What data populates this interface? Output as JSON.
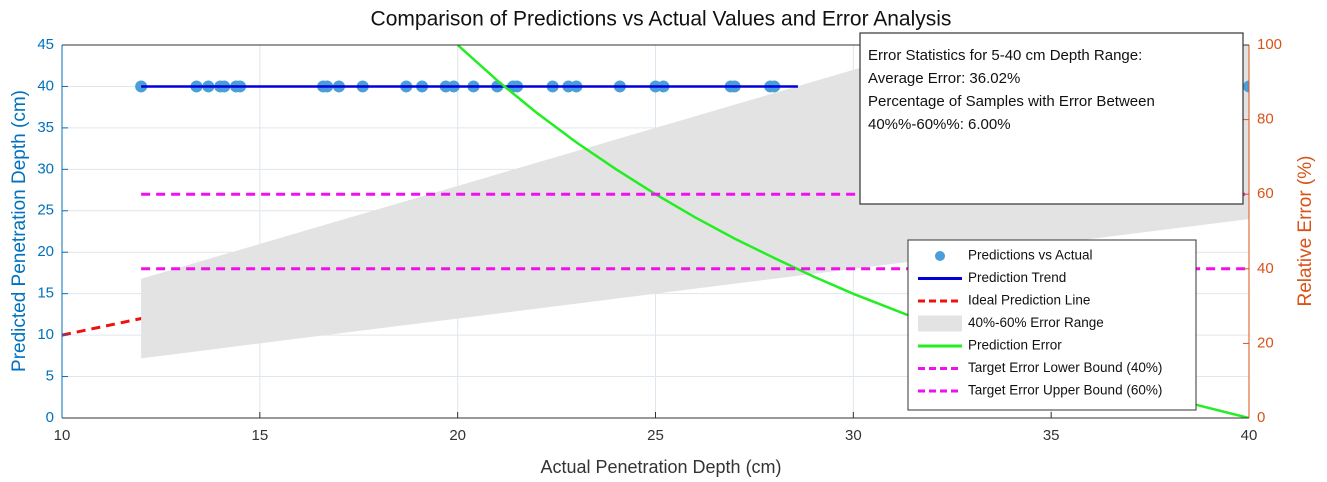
{
  "chart_data": {
    "type": "dual-axis",
    "title": "Comparison of Predictions vs Actual Values and Error Analysis",
    "x_label": "Actual Penetration Depth (cm)",
    "y_label": "Predicted Penetration Depth (cm)",
    "y2_label": "Relative Error (%)",
    "xlim": [
      10,
      40
    ],
    "xticks": [
      10,
      15,
      20,
      25,
      30,
      35,
      40
    ],
    "ylim": [
      0,
      45
    ],
    "yticks": [
      0,
      5,
      10,
      15,
      20,
      25,
      30,
      35,
      40,
      45
    ],
    "y2lim": [
      0,
      100
    ],
    "y2ticks": [
      0,
      20,
      40,
      60,
      80,
      100
    ],
    "y_color": "#0072bd",
    "y2_color": "#d95319",
    "grid": true,
    "legend": "lower right",
    "series": [
      {
        "name": "Predictions vs Actual",
        "type": "scatter",
        "color": "#4a9fd8",
        "x": [
          12,
          13.4,
          13.7,
          14.0,
          14.1,
          14.4,
          14.5,
          16.6,
          16.7,
          17.0,
          17.6,
          18.7,
          19.1,
          19.7,
          19.9,
          20.4,
          21.0,
          21.4,
          21.5,
          22.4,
          22.8,
          23.0,
          24.1,
          25.0,
          25.2,
          26.9,
          27.0,
          27.9,
          28.0,
          40.0
        ],
        "values": [
          40,
          40,
          40,
          40,
          40,
          40,
          40,
          40,
          40,
          40,
          40,
          40,
          40,
          40,
          40,
          40,
          40,
          40,
          40,
          40,
          40,
          40,
          40,
          40,
          40,
          40,
          40,
          40,
          40,
          40
        ]
      },
      {
        "name": "Prediction Trend",
        "type": "line",
        "color": "#0000dd",
        "x": [
          12,
          28.6
        ],
        "values": [
          40,
          40
        ]
      },
      {
        "name": "Ideal Prediction Line",
        "type": "line",
        "dash": true,
        "color": "#ee1111",
        "x": [
          10,
          40
        ],
        "values": [
          10,
          40
        ]
      },
      {
        "name": "40%-60% Error Range",
        "type": "band",
        "color": "#e3e3e3",
        "x": [
          12,
          40
        ],
        "lower": [
          7.2,
          24
        ],
        "upper": [
          16.8,
          56
        ]
      },
      {
        "name": "Prediction Error",
        "type": "line",
        "axis": "y2",
        "color": "#22ee22",
        "x": [
          20,
          21,
          22,
          23,
          24,
          25,
          26,
          27,
          28,
          29,
          30,
          32,
          34,
          36,
          38,
          40
        ],
        "values": [
          100,
          90.5,
          81.8,
          73.9,
          66.7,
          60,
          53.8,
          48.1,
          42.9,
          37.9,
          33.3,
          25,
          17.6,
          11.1,
          5.3,
          0
        ]
      },
      {
        "name": "Target Error Lower Bound (40%)",
        "type": "line",
        "axis": "y2",
        "dash": true,
        "color": "#ee11ee",
        "x": [
          12,
          40
        ],
        "values": [
          40,
          40
        ]
      },
      {
        "name": "Target Error Upper Bound (60%)",
        "type": "line",
        "axis": "y2",
        "dash": true,
        "color": "#ee11ee",
        "x": [
          12,
          40
        ],
        "values": [
          60,
          60
        ]
      }
    ],
    "annotation": [
      "Error Statistics for 5-40 cm Depth Range:",
      "Average Error: 36.02%",
      "Percentage of Samples with Error Between",
      "40%%-60%%: 6.00%"
    ]
  }
}
